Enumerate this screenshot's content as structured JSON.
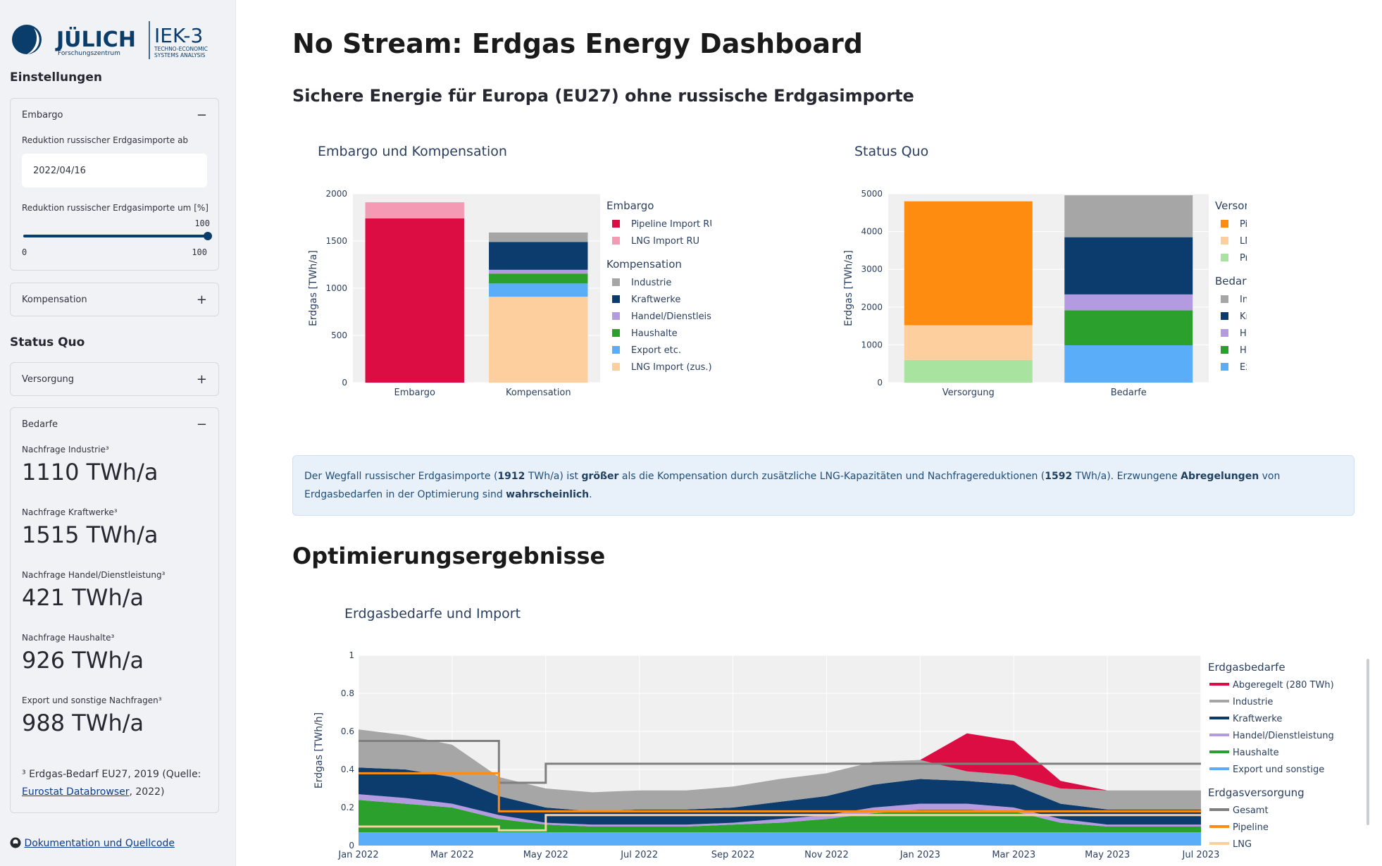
{
  "sidebar": {
    "logo": {
      "brand": "JÜLICH",
      "sub": "Forschungszentrum",
      "inst": "IEK-3",
      "inst_sub1": "TECHNO-ECONOMIC",
      "inst_sub2": "SYSTEMS ANALYSIS"
    },
    "settings_heading": "Einstellungen",
    "embargo": {
      "title": "Embargo",
      "toggle": "−",
      "date_label": "Reduktion russischer Erdgasimporte ab",
      "date_value": "2022/04/16",
      "slider_label": "Reduktion russischer Erdgasimporte um [%]",
      "slider_value": "100",
      "slider_min": "0",
      "slider_max": "100",
      "slider_fraction": 1.0
    },
    "kompensation": {
      "title": "Kompensation",
      "toggle": "+"
    },
    "status_quo_heading": "Status Quo",
    "versorgung": {
      "title": "Versorgung",
      "toggle": "+"
    },
    "bedarfe": {
      "title": "Bedarfe",
      "toggle": "−",
      "metrics": [
        {
          "label": "Nachfrage Industrie³",
          "value": "1110 TWh/a"
        },
        {
          "label": "Nachfrage Kraftwerke³",
          "value": "1515 TWh/a"
        },
        {
          "label": "Nachfrage Handel/Dienstleistung³",
          "value": "421 TWh/a"
        },
        {
          "label": "Nachfrage Haushalte³",
          "value": "926 TWh/a"
        },
        {
          "label": "Export und sonstige Nachfragen³",
          "value": "988 TWh/a"
        }
      ],
      "footnote_pre": "³ Erdgas-Bedarf EU27, 2019 (Quelle:",
      "footnote_link": "Eurostat Databrowser",
      "footnote_post": ", 2022)"
    },
    "doc_link": "Dokumentation und Quellcode"
  },
  "main": {
    "title": "No Stream: Erdgas Energy Dashboard",
    "subtitle": "Sichere Energie für Europa (EU27) ohne russische Erdgasimporte",
    "info": {
      "t1": "Der Wegfall russischer Erdgasimporte (",
      "v1": "1912",
      "t2": " TWh/a) ist ",
      "b1": "größer",
      "t3": " als die Kompensation durch zusätzliche LNG-Kapazitäten und Nachfragereduktionen (",
      "v2": "1592",
      "t4": " TWh/a). Erzwungene ",
      "b2": "Abregelungen",
      "t5": " von Erdgasbedarfen in der Optimierung sind ",
      "b3": "wahrscheinlich",
      "t6": "."
    },
    "results_heading": "Optimierungsergebnisse"
  },
  "chart_data": [
    {
      "type": "bar",
      "title": "Embargo und Kompensation",
      "ylabel": "Erdgas [TWh/a]",
      "ylim": [
        0,
        2000
      ],
      "yticks": [
        "0",
        "500",
        "1000",
        "1500",
        "2000"
      ],
      "categories": [
        "Embargo",
        "Kompensation"
      ],
      "legend_groups": [
        {
          "title": "Embargo",
          "items": [
            "Pipeline Import RU",
            "LNG Import RU"
          ]
        },
        {
          "title": "Kompensation",
          "items": [
            "Industrie",
            "Kraftwerke",
            "Handel/Dienstleistung",
            "Haushalte",
            "Export etc.",
            "LNG Import (zus.)"
          ]
        }
      ],
      "series": [
        {
          "name": "Pipeline Import RU",
          "color": "#dc0d43",
          "values": [
            1740,
            0
          ]
        },
        {
          "name": "LNG Import RU",
          "color": "#f59ab5",
          "values": [
            170,
            0
          ]
        },
        {
          "name": "LNG Import (zus.)",
          "color": "#fecf9e",
          "values": [
            0,
            910
          ]
        },
        {
          "name": "Export etc.",
          "color": "#5aadf8",
          "values": [
            0,
            140
          ]
        },
        {
          "name": "Haushalte",
          "color": "#2ca02c",
          "values": [
            0,
            105
          ]
        },
        {
          "name": "Handel/Dienstleistung",
          "color": "#b49ae0",
          "values": [
            0,
            40
          ]
        },
        {
          "name": "Kraftwerke",
          "color": "#0c3c6e",
          "values": [
            0,
            295
          ]
        },
        {
          "name": "Industrie",
          "color": "#a6a6a6",
          "values": [
            0,
            100
          ]
        }
      ]
    },
    {
      "type": "bar",
      "title": "Status Quo",
      "ylabel": "Erdgas [TWh/a]",
      "ylim": [
        0,
        5000
      ],
      "yticks": [
        "0",
        "1000",
        "2000",
        "3000",
        "4000",
        "5000"
      ],
      "categories": [
        "Versorgung",
        "Bedarfe"
      ],
      "legend_groups": [
        {
          "title": "Versorgung",
          "items": [
            "Pipeline Import ges.",
            "LNG Import ges.",
            "Produktion Inland"
          ]
        },
        {
          "title": "Bedarfe",
          "items": [
            "Industrie",
            "Kraftwerke",
            "Handel/Dienstleistung",
            "Haushalte",
            "Export etc."
          ]
        }
      ],
      "series": [
        {
          "name": "Produktion Inland",
          "color": "#a8e4a0",
          "values": [
            600,
            0
          ]
        },
        {
          "name": "LNG Import ges.",
          "color": "#fecf9e",
          "values": [
            920,
            0
          ]
        },
        {
          "name": "Pipeline Import ges.",
          "color": "#fe8c10",
          "values": [
            3280,
            0
          ]
        },
        {
          "name": "Export etc.",
          "color": "#5aadf8",
          "values": [
            0,
            988
          ]
        },
        {
          "name": "Haushalte",
          "color": "#2ca02c",
          "values": [
            0,
            926
          ]
        },
        {
          "name": "Handel/Dienstleistung",
          "color": "#b49ae0",
          "values": [
            0,
            421
          ]
        },
        {
          "name": "Kraftwerke",
          "color": "#0c3c6e",
          "values": [
            0,
            1515
          ]
        },
        {
          "name": "Industrie",
          "color": "#a6a6a6",
          "values": [
            0,
            1110
          ]
        }
      ]
    },
    {
      "type": "area",
      "title": "Erdgasbedarfe und Import",
      "ylabel": "Erdgas [TWh/h]",
      "ylim": [
        0,
        1
      ],
      "yticks": [
        "0",
        "0.2",
        "0.4",
        "0.6",
        "0.8",
        "1"
      ],
      "xticks": [
        "Jan 2022",
        "Mar 2022",
        "May 2022",
        "Jul 2022",
        "Sep 2022",
        "Nov 2022",
        "Jan 2023",
        "Mar 2023",
        "May 2023",
        "Jul 2023"
      ],
      "x_months": [
        "2022-01",
        "2022-02",
        "2022-03",
        "2022-04",
        "2022-05",
        "2022-06",
        "2022-07",
        "2022-08",
        "2022-09",
        "2022-10",
        "2022-11",
        "2022-12",
        "2023-01",
        "2023-02",
        "2023-03",
        "2023-04",
        "2023-05",
        "2023-06",
        "2023-07"
      ],
      "legend_groups": [
        {
          "title": "Erdgasbedarfe",
          "items": [
            "Abgeregelt (280 TWh)",
            "Industrie",
            "Kraftwerke",
            "Handel/Dienstleistung",
            "Haushalte",
            "Export und sonstige"
          ]
        },
        {
          "title": "Erdgasversorgung",
          "items": [
            "Gesamt",
            "Pipeline",
            "LNG"
          ]
        }
      ],
      "series": [
        {
          "name": "Export und sonstige",
          "color": "#5aadf8",
          "values": [
            0.07,
            0.07,
            0.07,
            0.07,
            0.07,
            0.07,
            0.07,
            0.07,
            0.07,
            0.07,
            0.07,
            0.07,
            0.07,
            0.07,
            0.07,
            0.07,
            0.07,
            0.07,
            0.07
          ]
        },
        {
          "name": "Haushalte",
          "color": "#2ca02c",
          "values": [
            0.17,
            0.15,
            0.13,
            0.07,
            0.04,
            0.03,
            0.03,
            0.03,
            0.04,
            0.05,
            0.07,
            0.1,
            0.12,
            0.12,
            0.11,
            0.05,
            0.03,
            0.03,
            0.03
          ]
        },
        {
          "name": "Handel/Dienstleistung",
          "color": "#b49ae0",
          "values": [
            0.03,
            0.03,
            0.02,
            0.02,
            0.01,
            0.01,
            0.01,
            0.01,
            0.01,
            0.02,
            0.02,
            0.03,
            0.03,
            0.03,
            0.02,
            0.02,
            0.01,
            0.01,
            0.01
          ]
        },
        {
          "name": "Kraftwerke",
          "color": "#0c3c6e",
          "values": [
            0.14,
            0.15,
            0.14,
            0.1,
            0.08,
            0.07,
            0.08,
            0.08,
            0.08,
            0.09,
            0.1,
            0.12,
            0.13,
            0.12,
            0.12,
            0.08,
            0.08,
            0.08,
            0.08
          ]
        },
        {
          "name": "Industrie",
          "color": "#a6a6a6",
          "values": [
            0.2,
            0.18,
            0.17,
            0.1,
            0.1,
            0.1,
            0.1,
            0.1,
            0.11,
            0.12,
            0.12,
            0.12,
            0.1,
            0.05,
            0.05,
            0.08,
            0.1,
            0.1,
            0.1
          ]
        },
        {
          "name": "Abgeregelt (280 TWh)",
          "color": "#dc0d43",
          "values": [
            0,
            0,
            0,
            0,
            0,
            0,
            0,
            0,
            0,
            0,
            0,
            0,
            0,
            0.2,
            0.18,
            0.04,
            0,
            0,
            0
          ]
        }
      ],
      "lines": [
        {
          "name": "Gesamt",
          "color": "#7f7f7f",
          "values": [
            0.55,
            0.55,
            0.55,
            0.33,
            0.43,
            0.43,
            0.43,
            0.43,
            0.43,
            0.43,
            0.43,
            0.43,
            0.43,
            0.43,
            0.43,
            0.43,
            0.43,
            0.43,
            0.43
          ]
        },
        {
          "name": "Pipeline",
          "color": "#fe8c10",
          "values": [
            0.38,
            0.38,
            0.38,
            0.18,
            0.18,
            0.18,
            0.18,
            0.18,
            0.18,
            0.18,
            0.18,
            0.18,
            0.18,
            0.18,
            0.18,
            0.18,
            0.18,
            0.18,
            0.18
          ]
        },
        {
          "name": "LNG",
          "color": "#fecf9e",
          "values": [
            0.1,
            0.1,
            0.1,
            0.08,
            0.16,
            0.16,
            0.16,
            0.16,
            0.16,
            0.16,
            0.16,
            0.16,
            0.16,
            0.16,
            0.16,
            0.16,
            0.16,
            0.16,
            0.16
          ]
        }
      ]
    }
  ]
}
